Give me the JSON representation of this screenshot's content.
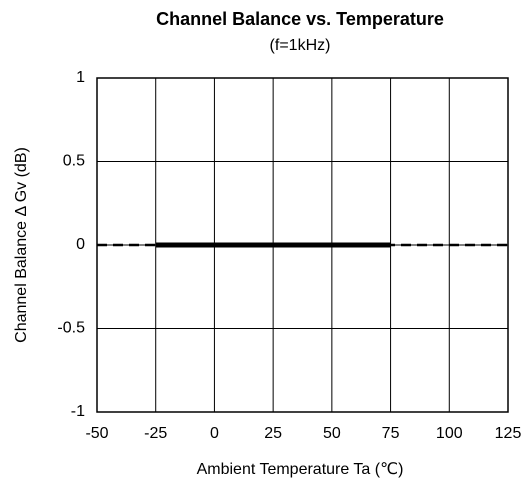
{
  "chart_data": {
    "type": "line",
    "title": "Channel Balance vs. Temperature",
    "subtitle": "(f=1kHz)",
    "x_label": "Ambient Temperature  Ta (℃)",
    "y_label": "Channel Balance  Δ Gv (dB)",
    "xlim": [
      -50,
      125
    ],
    "xticks": [
      -50,
      -25,
      0,
      25,
      50,
      75,
      100,
      125
    ],
    "ylim": [
      -1,
      1
    ],
    "yticks": [
      -1,
      -0.5,
      0,
      0.5,
      1
    ],
    "grid": true,
    "series": [
      {
        "color": "#000000",
        "linestyle": "dashed",
        "x": [
          -50,
          125
        ],
        "values": [
          0,
          0
        ]
      },
      {
        "color": "#000000",
        "linestyle": "solid",
        "x": [
          -25,
          75
        ],
        "values": [
          0,
          0
        ]
      }
    ]
  }
}
